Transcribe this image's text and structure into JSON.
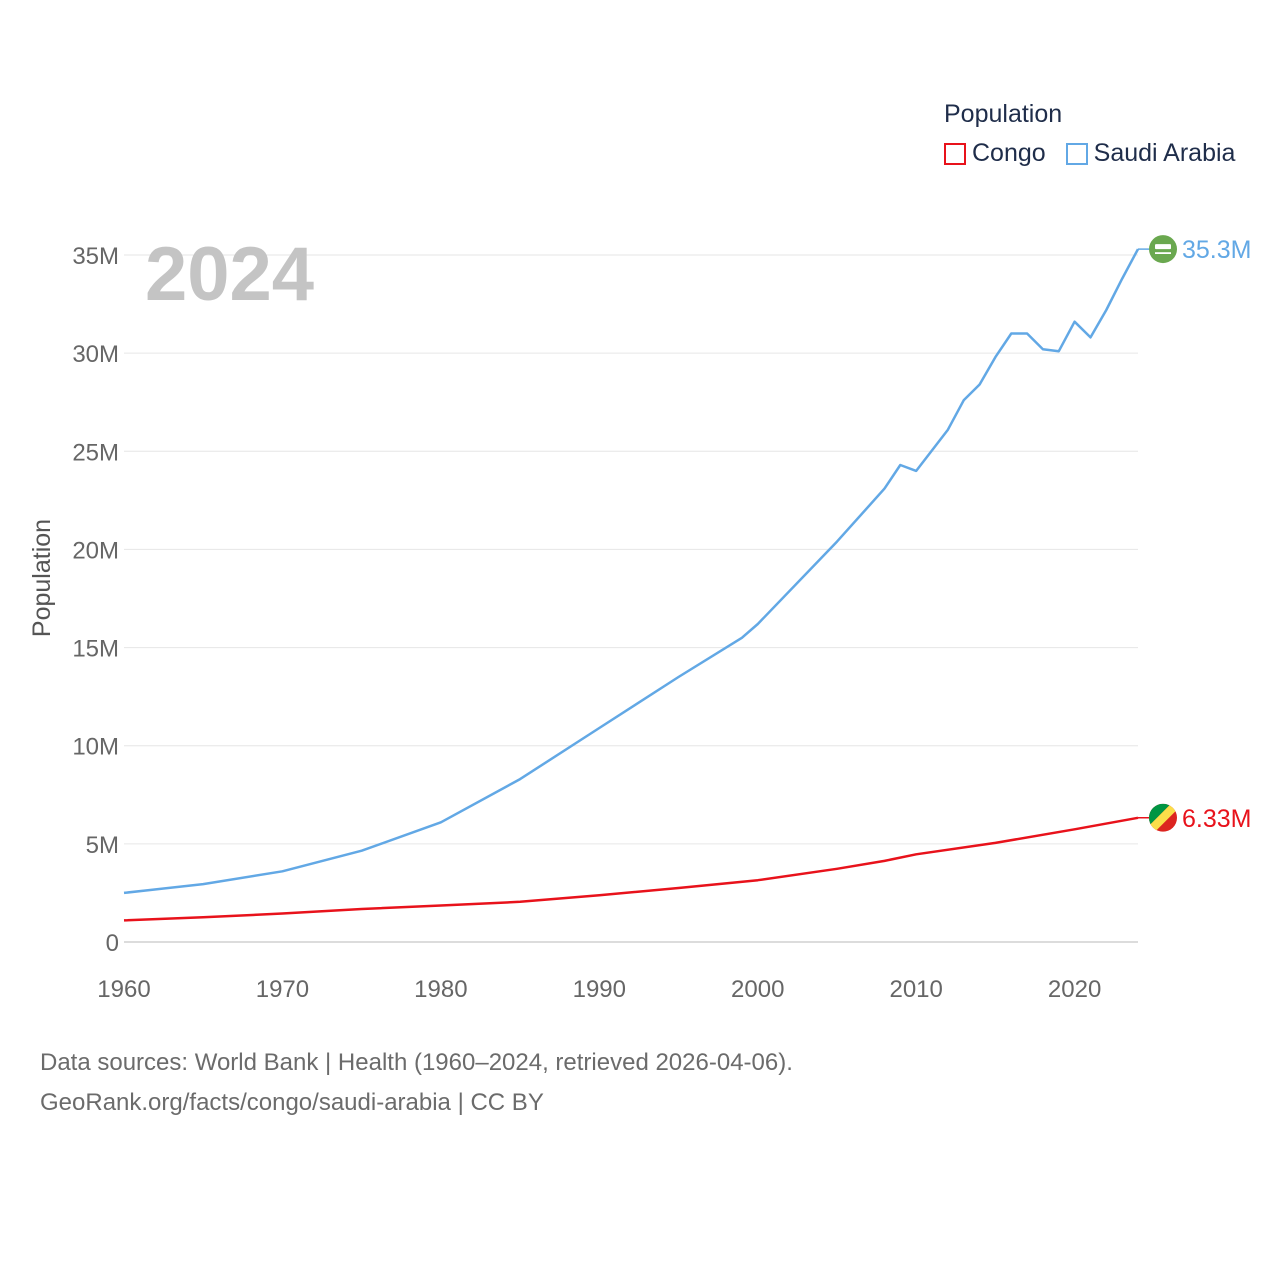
{
  "chart_data": {
    "type": "line",
    "year_label": "2024",
    "ylabel": "Population",
    "xlim": [
      1960,
      2024
    ],
    "ylim": [
      0,
      35000000
    ],
    "x_ticks": [
      1960,
      1970,
      1980,
      1990,
      2000,
      2010,
      2020
    ],
    "y_ticks": [
      {
        "value": 0,
        "label": "0"
      },
      {
        "value": 5000000,
        "label": "5M"
      },
      {
        "value": 10000000,
        "label": "10M"
      },
      {
        "value": 15000000,
        "label": "15M"
      },
      {
        "value": 20000000,
        "label": "20M"
      },
      {
        "value": 25000000,
        "label": "25M"
      },
      {
        "value": 30000000,
        "label": "30M"
      },
      {
        "value": 35000000,
        "label": "35M"
      }
    ],
    "legend_title": "Population",
    "legend_position": "top-right",
    "series": [
      {
        "name": "Congo",
        "color": "#e8121b",
        "end_label": "6.33M",
        "flag_icon": "congo-flag-icon",
        "points": [
          [
            1960,
            1100000
          ],
          [
            1965,
            1260000
          ],
          [
            1970,
            1450000
          ],
          [
            1975,
            1680000
          ],
          [
            1980,
            1860000
          ],
          [
            1985,
            2050000
          ],
          [
            1990,
            2380000
          ],
          [
            1995,
            2750000
          ],
          [
            2000,
            3150000
          ],
          [
            2005,
            3730000
          ],
          [
            2008,
            4130000
          ],
          [
            2010,
            4470000
          ],
          [
            2015,
            5050000
          ],
          [
            2020,
            5740000
          ],
          [
            2024,
            6330000
          ]
        ]
      },
      {
        "name": "Saudi Arabia",
        "color": "#62a8e5",
        "end_label": "35.3M",
        "flag_icon": "saudi-arabia-flag-icon",
        "points": [
          [
            1960,
            2500000
          ],
          [
            1965,
            2950000
          ],
          [
            1970,
            3600000
          ],
          [
            1975,
            4650000
          ],
          [
            1980,
            6100000
          ],
          [
            1985,
            8300000
          ],
          [
            1990,
            10900000
          ],
          [
            1995,
            13500000
          ],
          [
            1999,
            15500000
          ],
          [
            2000,
            16200000
          ],
          [
            2005,
            20400000
          ],
          [
            2008,
            23100000
          ],
          [
            2009,
            24300000
          ],
          [
            2010,
            24000000
          ],
          [
            2012,
            26100000
          ],
          [
            2013,
            27600000
          ],
          [
            2014,
            28400000
          ],
          [
            2015,
            29800000
          ],
          [
            2016,
            31000000
          ],
          [
            2017,
            31000000
          ],
          [
            2018,
            30200000
          ],
          [
            2019,
            30100000
          ],
          [
            2020,
            31600000
          ],
          [
            2021,
            30800000
          ],
          [
            2022,
            32200000
          ],
          [
            2023,
            33800000
          ],
          [
            2024,
            35300000
          ]
        ]
      }
    ]
  },
  "source": {
    "line1": "Data sources: World Bank | Health (1960–2024, retrieved 2026-04-06).",
    "line2": "GeoRank.org/facts/congo/saudi-arabia | CC BY"
  }
}
